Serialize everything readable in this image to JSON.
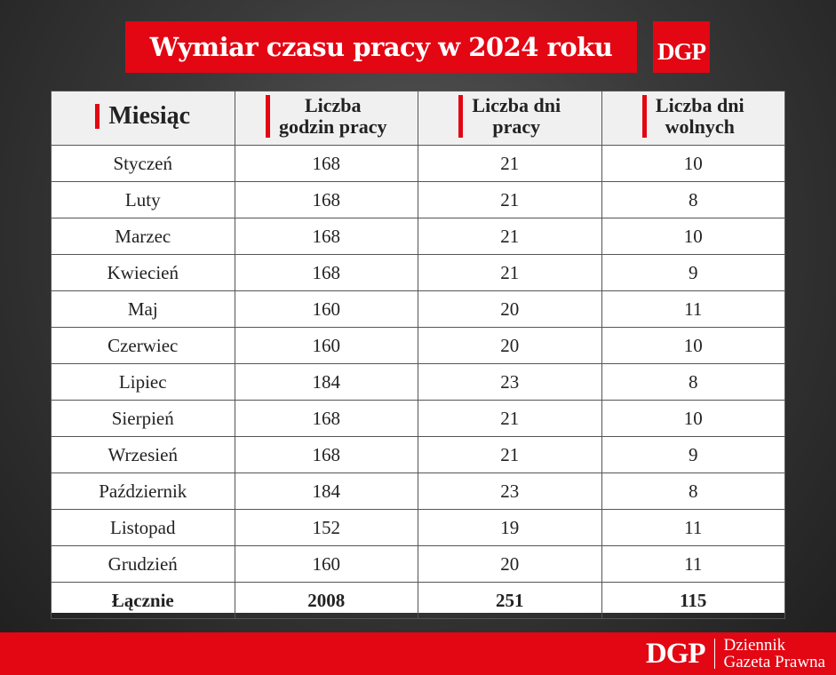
{
  "title": "Wymiar czasu pracy w 2024 roku",
  "logo": "DGP",
  "table": {
    "headers": [
      "Miesiąc",
      "Liczba godzin pracy",
      "Liczba dni pracy",
      "Liczba dni wolnych"
    ],
    "header_lines": [
      [
        "Miesiąc"
      ],
      [
        "Liczba",
        "godzin pracy"
      ],
      [
        "Liczba dni",
        "pracy"
      ],
      [
        "Liczba dni",
        "wolnych"
      ]
    ],
    "rows": [
      [
        "Styczeń",
        "168",
        "21",
        "10"
      ],
      [
        "Luty",
        "168",
        "21",
        "8"
      ],
      [
        "Marzec",
        "168",
        "21",
        "10"
      ],
      [
        "Kwiecień",
        "168",
        "21",
        "9"
      ],
      [
        "Maj",
        "160",
        "20",
        "11"
      ],
      [
        "Czerwiec",
        "160",
        "20",
        "10"
      ],
      [
        "Lipiec",
        "184",
        "23",
        "8"
      ],
      [
        "Sierpień",
        "168",
        "21",
        "10"
      ],
      [
        "Wrzesień",
        "168",
        "21",
        "9"
      ],
      [
        "Październik",
        "184",
        "23",
        "8"
      ],
      [
        "Listopad",
        "152",
        "19",
        "11"
      ],
      [
        "Grudzień",
        "160",
        "20",
        "11"
      ]
    ],
    "total": [
      "Łącznie",
      "2008",
      "251",
      "115"
    ]
  },
  "footer": {
    "logo": "DGP",
    "name_line1": "Dziennik",
    "name_line2": "Gazeta Prawna"
  },
  "colors": {
    "accent": "#e30613",
    "header_bg": "#f0f0f0"
  }
}
